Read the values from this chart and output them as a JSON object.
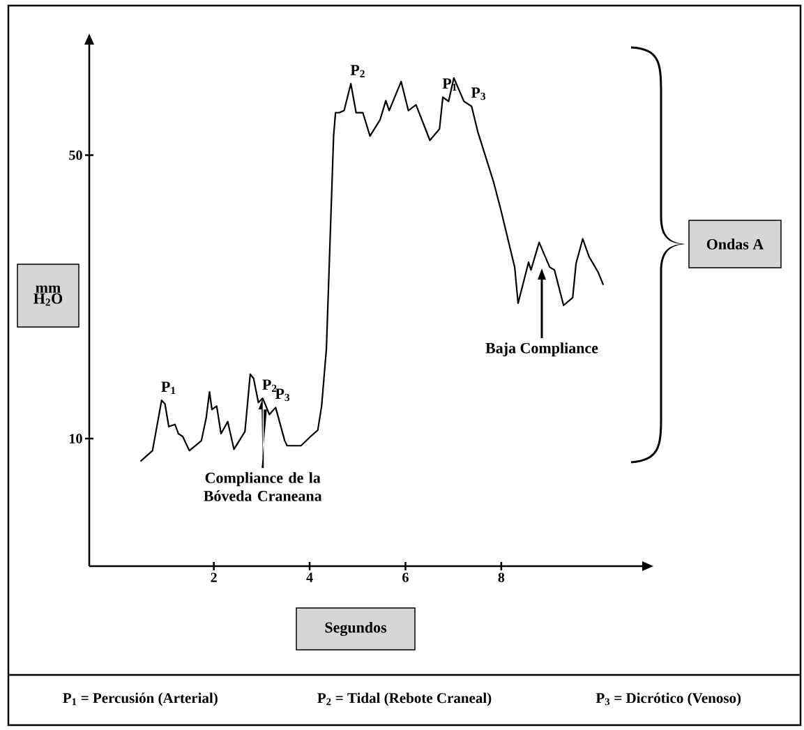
{
  "chart_data": {
    "type": "line",
    "xlabel": "Segundos",
    "ylabel": "mm H$_{2}$O",
    "xlim": [
      -0.6,
      11
    ],
    "ylim": [
      -8,
      66
    ],
    "xticks": [
      2,
      4,
      6,
      8
    ],
    "yticks": [
      10,
      50
    ],
    "color": "#000000",
    "x": [
      0.47,
      0.72,
      0.91,
      0.98,
      1.06,
      1.19,
      1.26,
      1.35,
      1.49,
      1.74,
      1.84,
      1.91,
      1.96,
      2.06,
      2.15,
      2.29,
      2.42,
      2.65,
      2.76,
      2.83,
      2.93,
      3.02,
      3.16,
      3.29,
      3.48,
      3.53,
      3.82,
      4.02,
      4.17,
      4.25,
      4.35,
      4.5,
      4.54,
      4.62,
      4.72,
      4.86,
      4.97,
      5.11,
      5.26,
      5.47,
      5.59,
      5.66,
      5.91,
      6.06,
      6.22,
      6.51,
      6.71,
      6.78,
      6.9,
      7.01,
      7.22,
      7.38,
      7.51,
      7.84,
      7.99,
      8.28,
      8.35,
      8.57,
      8.62,
      8.79,
      9.01,
      9.11,
      9.3,
      9.49,
      9.56,
      9.7,
      9.83,
      10.02,
      10.13
    ],
    "values": [
      6.8,
      8.3,
      15.4,
      14.9,
      11.7,
      12.0,
      10.7,
      10.3,
      8.3,
      9.7,
      12.9,
      16.6,
      14.1,
      14.6,
      10.7,
      12.4,
      8.5,
      11.0,
      19.1,
      18.5,
      15.1,
      15.7,
      13.4,
      14.4,
      9.7,
      9.0,
      9.0,
      10.3,
      11.2,
      14.6,
      22.7,
      52.7,
      56.0,
      56.0,
      56.3,
      60.1,
      56.0,
      56.0,
      52.7,
      55.0,
      57.7,
      56.3,
      60.4,
      56.3,
      57.1,
      52.1,
      53.7,
      58.2,
      57.6,
      60.9,
      57.6,
      56.9,
      53.3,
      46.2,
      42.3,
      34.2,
      29.1,
      34.9,
      33.8,
      37.7,
      34.2,
      33.8,
      28.8,
      29.9,
      34.7,
      38.2,
      35.7,
      33.5,
      31.7
    ],
    "annotations": [
      {
        "text": "P$_{1}$",
        "x": 0.91,
        "y": 15.4
      },
      {
        "text": "P$_{2}$",
        "x": 3.02,
        "y": 15.7
      },
      {
        "text": "P$_{3}$",
        "x": 3.29,
        "y": 14.4
      },
      {
        "text": "P$_{2}$",
        "x": 4.86,
        "y": 60.1
      },
      {
        "text": "P$_{1}$",
        "x": 6.78,
        "y": 58.2
      },
      {
        "text": "P$_{3}$",
        "x": 7.38,
        "y": 56.9
      },
      {
        "text": "Compliance de la Bóveda Craneana",
        "x": 3.02,
        "y": 15.7
      },
      "Baja Compliance",
      "Ondas A",
      "P$_{1}$ = Percusión (Arterial)",
      "P$_{2}$ = Tidal (Rebote Craneal)",
      "P$_{3}$ = Dicrótico (Venoso)"
    ]
  }
}
